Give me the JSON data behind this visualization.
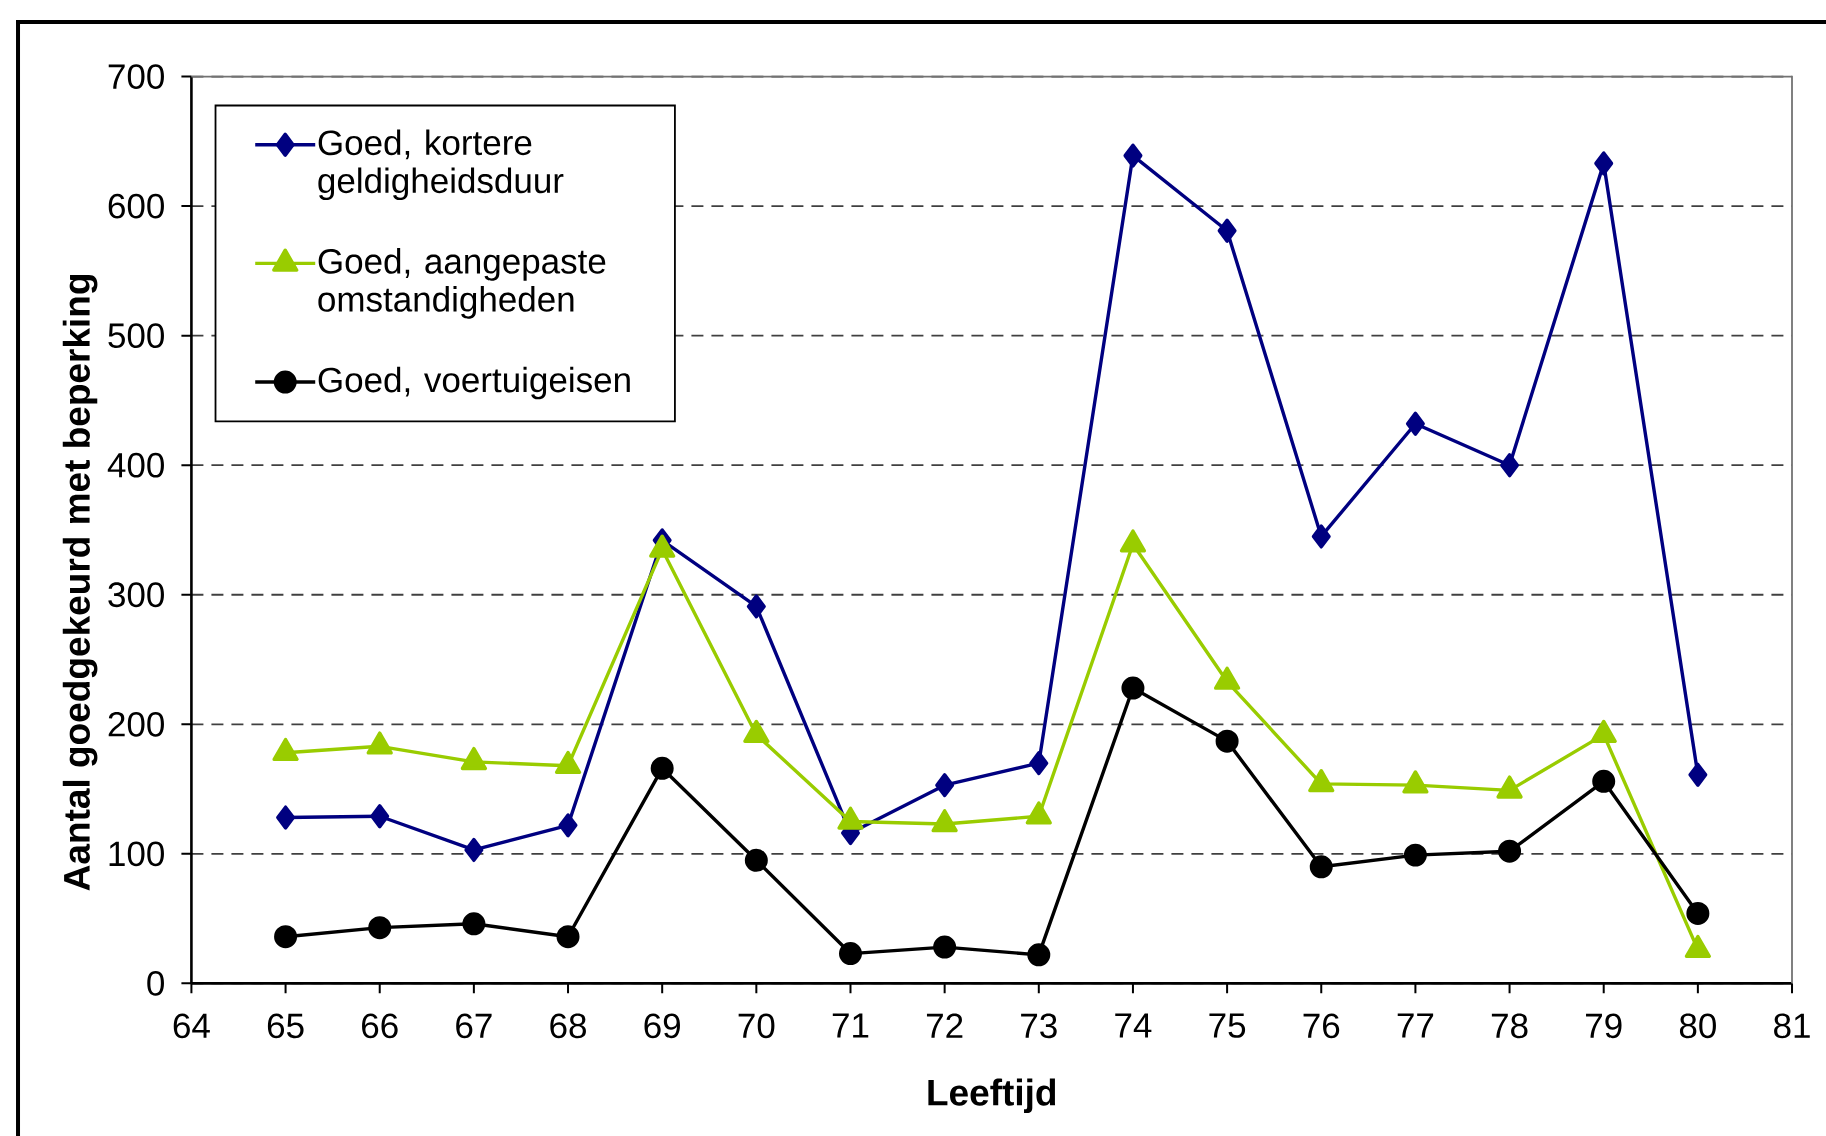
{
  "chart_data": {
    "type": "line",
    "xlabel": "Leeftijd",
    "ylabel": "Aantal goedgekeurd met beperking",
    "x": [
      65,
      66,
      67,
      68,
      69,
      70,
      71,
      72,
      73,
      74,
      75,
      76,
      77,
      78,
      79,
      80
    ],
    "xlim": [
      64,
      81
    ],
    "xticks": [
      64,
      65,
      66,
      67,
      68,
      69,
      70,
      71,
      72,
      73,
      74,
      75,
      76,
      77,
      78,
      79,
      80,
      81
    ],
    "ylim": [
      0,
      700
    ],
    "yticks": [
      0,
      100,
      200,
      300,
      400,
      500,
      600,
      700
    ],
    "grid": "y",
    "legend": "top left",
    "series": [
      {
        "name": "Goed, kortere geldigheidsduur",
        "color": "#000080",
        "marker": "diamond",
        "values": [
          128,
          129,
          103,
          122,
          342,
          291,
          116,
          153,
          170,
          639,
          581,
          345,
          432,
          400,
          633,
          161
        ]
      },
      {
        "name": "Goed, aangepaste omstandigheden",
        "color": "#99cc00",
        "marker": "triangle",
        "values": [
          178,
          183,
          171,
          168,
          335,
          192,
          125,
          123,
          129,
          339,
          233,
          154,
          153,
          149,
          192,
          26
        ]
      },
      {
        "name": "Goed, voertuigeisen",
        "color": "#000000",
        "marker": "circle",
        "values": [
          36,
          43,
          46,
          36,
          166,
          95,
          23,
          28,
          22,
          228,
          187,
          90,
          99,
          102,
          156,
          54
        ]
      }
    ]
  }
}
